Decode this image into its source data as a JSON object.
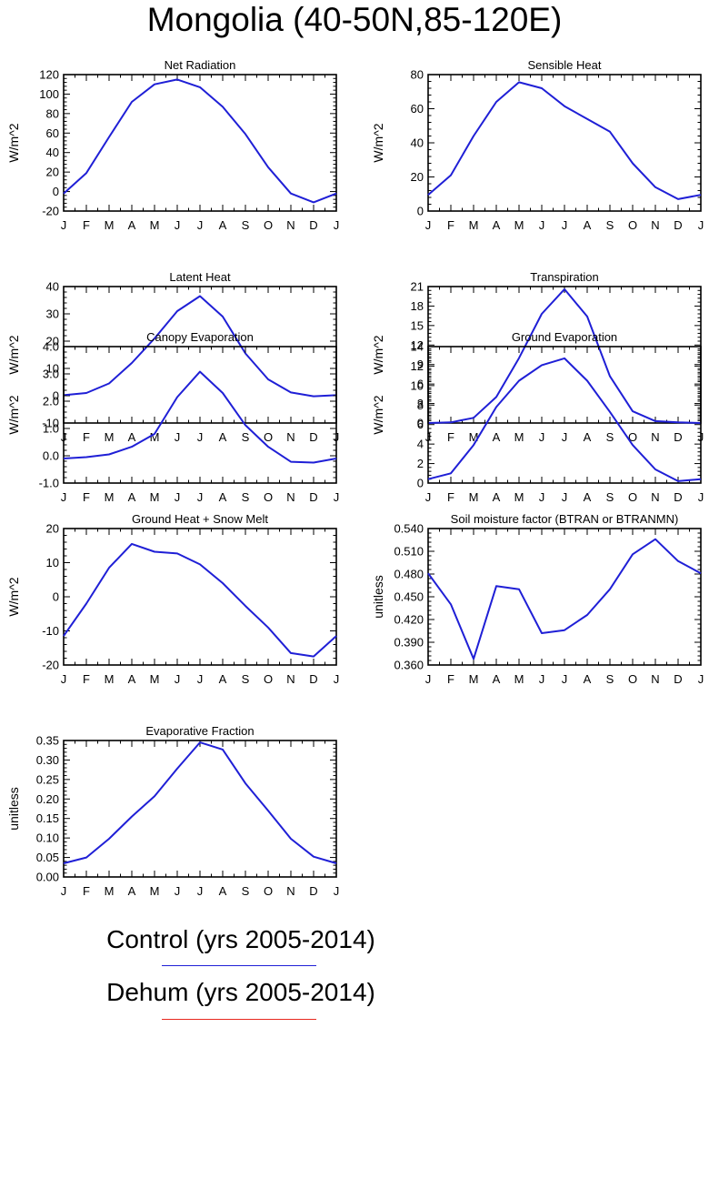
{
  "title": "Mongolia (40-50N,85-120E)",
  "month_labels": [
    "J",
    "F",
    "M",
    "A",
    "M",
    "J",
    "J",
    "A",
    "S",
    "O",
    "N",
    "D",
    "J"
  ],
  "legend": {
    "control": {
      "label": "Control (yrs 2005-2014)",
      "color": "#1f1fd6"
    },
    "dehum": {
      "label": "Dehum (yrs 2005-2014)",
      "color": "#e8281e"
    }
  },
  "line_color": "#1f1fd6",
  "chart_data": [
    {
      "type": "line",
      "title": "Net Radiation",
      "ylabel": "W/m^2",
      "ylim": [
        -20,
        120
      ],
      "yticks": [
        -20,
        0,
        20,
        40,
        60,
        80,
        100,
        120
      ],
      "ytick_labels": [
        "-20",
        "0",
        "20",
        "40",
        "60",
        "80",
        "100",
        "120"
      ],
      "series": [
        {
          "values": [
            -2,
            19,
            56,
            92,
            110,
            115,
            107,
            87,
            59,
            25,
            -2,
            -11,
            -2
          ]
        }
      ]
    },
    {
      "type": "line",
      "title": "Sensible Heat",
      "ylabel": "W/m^2",
      "ylim": [
        0,
        80
      ],
      "yticks": [
        0,
        20,
        40,
        60,
        80
      ],
      "ytick_labels": [
        "0",
        "20",
        "40",
        "60",
        "80"
      ],
      "series": [
        {
          "values": [
            9.5,
            21,
            44,
            64,
            75.5,
            72,
            61.5,
            54,
            46.5,
            28,
            14,
            7,
            9.5
          ]
        }
      ]
    },
    {
      "type": "line",
      "title": "Latent Heat",
      "ylabel": "W/m^2",
      "ylim": [
        -10,
        40
      ],
      "yticks": [
        -10,
        0,
        10,
        20,
        30,
        40
      ],
      "ytick_labels": [
        "-10",
        "0",
        "10",
        "20",
        "30",
        "40"
      ],
      "series": [
        {
          "values": [
            0.2,
            1,
            4.5,
            12,
            21,
            31,
            36.5,
            29,
            15.5,
            6,
            1.2,
            -0.2,
            0.2
          ]
        }
      ]
    },
    {
      "type": "line",
      "title": "Transpiration",
      "ylabel": "W/m^2",
      "ylim": [
        0,
        21
      ],
      "yticks": [
        0,
        3,
        6,
        9,
        12,
        15,
        18,
        21
      ],
      "ytick_labels": [
        "0",
        "3",
        "6",
        "9",
        "12",
        "15",
        "18",
        "21"
      ],
      "series": [
        {
          "values": [
            0,
            0.1,
            0.8,
            4,
            10,
            16.8,
            20.6,
            16.4,
            7.2,
            1.8,
            0.3,
            0.1,
            0
          ]
        }
      ]
    },
    {
      "type": "line",
      "title": "Canopy Evaporation",
      "ylabel": "W/m^2",
      "ylim": [
        -1,
        4
      ],
      "yticks": [
        -1,
        0,
        1,
        2,
        3,
        4
      ],
      "ytick_labels": [
        "-1.0",
        "0.0",
        "1.0",
        "2.0",
        "3.0",
        "4.0"
      ],
      "series": [
        {
          "values": [
            -0.1,
            -0.05,
            0.05,
            0.33,
            0.8,
            2.15,
            3.08,
            2.3,
            1.12,
            0.33,
            -0.22,
            -0.25,
            -0.1
          ]
        }
      ]
    },
    {
      "type": "line",
      "title": "Ground Evaporation",
      "ylabel": "W/m^2",
      "ylim": [
        0,
        14
      ],
      "yticks": [
        0,
        2,
        4,
        6,
        8,
        10,
        12,
        14
      ],
      "ytick_labels": [
        "0",
        "2",
        "4",
        "6",
        "8",
        "10",
        "12",
        "14"
      ],
      "series": [
        {
          "values": [
            0.4,
            1,
            3.9,
            7.8,
            10.5,
            12.1,
            12.8,
            10.5,
            7.3,
            3.9,
            1.4,
            0.2,
            0.4
          ]
        }
      ]
    },
    {
      "type": "line",
      "title": "Ground Heat + Snow Melt",
      "ylabel": "W/m^2",
      "ylim": [
        -20,
        20
      ],
      "yticks": [
        -20,
        -10,
        0,
        10,
        20
      ],
      "ytick_labels": [
        "-20",
        "-10",
        "0",
        "10",
        "20"
      ],
      "series": [
        {
          "values": [
            -11.5,
            -2,
            8.5,
            15.5,
            13.2,
            12.7,
            9.5,
            4,
            -2.7,
            -9,
            -16.5,
            -17.5,
            -11.5
          ]
        }
      ]
    },
    {
      "type": "line",
      "title": "Soil moisture factor (BTRAN or BTRANMN)",
      "ylabel": "unitless",
      "ylim": [
        0.36,
        0.54
      ],
      "yticks": [
        0.36,
        0.39,
        0.42,
        0.45,
        0.48,
        0.51,
        0.54
      ],
      "ytick_labels": [
        "0.360",
        "0.390",
        "0.420",
        "0.450",
        "0.480",
        "0.510",
        "0.540"
      ],
      "series": [
        {
          "values": [
            0.481,
            0.44,
            0.368,
            0.464,
            0.46,
            0.402,
            0.406,
            0.426,
            0.46,
            0.506,
            0.526,
            0.497,
            0.481
          ]
        }
      ]
    },
    {
      "type": "line",
      "title": "Evaporative Fraction",
      "ylabel": "unitless",
      "ylim": [
        0,
        0.35
      ],
      "yticks": [
        0,
        0.05,
        0.1,
        0.15,
        0.2,
        0.25,
        0.3,
        0.35
      ],
      "ytick_labels": [
        "0.00",
        "0.05",
        "0.10",
        "0.15",
        "0.20",
        "0.25",
        "0.30",
        "0.35"
      ],
      "series": [
        {
          "values": [
            0.035,
            0.05,
            0.098,
            0.155,
            0.207,
            0.278,
            0.345,
            0.327,
            0.24,
            0.17,
            0.098,
            0.052,
            0.035
          ]
        }
      ]
    }
  ]
}
